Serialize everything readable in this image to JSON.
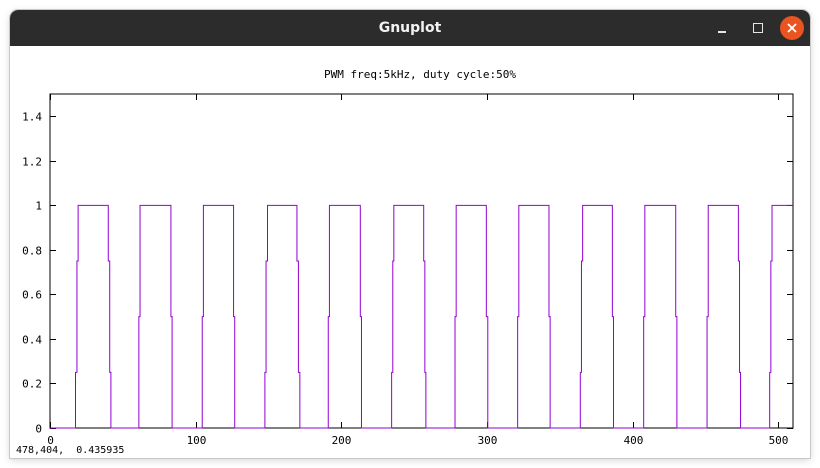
{
  "window": {
    "title": "Gnuplot",
    "buttons": {
      "minimize_icon": "minimize-icon",
      "maximize_icon": "maximize-icon",
      "close_icon": "close-icon",
      "close_color": "#e95420"
    }
  },
  "status": {
    "coords": "478,404,  0.435935"
  },
  "chart_data": {
    "type": "line",
    "title": "PWM freq:5kHz, duty cycle:50%",
    "xlabel": "",
    "ylabel": "",
    "xlim": [
      0,
      510
    ],
    "ylim": [
      0,
      1.5
    ],
    "xticks": [
      0,
      100,
      200,
      300,
      400,
      500
    ],
    "xtick_labels": [
      "0",
      "100",
      "200",
      "300",
      "400",
      "500"
    ],
    "yticks": [
      0,
      0.2,
      0.4,
      0.6,
      0.8,
      1,
      1.2,
      1.4
    ],
    "ytick_labels": [
      "0",
      "0.2",
      "0.4",
      "0.6",
      "0.8",
      "1",
      "1.2",
      "1.4"
    ],
    "grid": false,
    "legend": "none",
    "series": [
      {
        "color": "#9400d3",
        "pulses": [
          {
            "rise": [
              17.5,
              18.5,
              19.3
            ],
            "fall": [
              40.0,
              41.0,
              41.8
            ]
          },
          {
            "rise": [
              61.0,
              61.8
            ],
            "fall": [
              83.0,
              83.8
            ]
          },
          {
            "rise": [
              104.5,
              105.3
            ],
            "fall": [
              126.0,
              126.8
            ]
          },
          {
            "rise": [
              147.5,
              148.3,
              149.3
            ],
            "fall": [
              169.5,
              170.5,
              171.5
            ]
          },
          {
            "rise": [
              191.0,
              191.8
            ],
            "fall": [
              213.0,
              213.8
            ]
          },
          {
            "rise": [
              234.5,
              235.3,
              236.0
            ],
            "fall": [
              256.5,
              257.3,
              258.0
            ]
          },
          {
            "rise": [
              278.0,
              278.8
            ],
            "fall": [
              299.5,
              300.5
            ]
          },
          {
            "rise": [
              321.0,
              321.8
            ],
            "fall": [
              342.5,
              343.3
            ]
          },
          {
            "rise": [
              364.0,
              364.8,
              365.6
            ],
            "fall": [
              386.0,
              386.8
            ]
          },
          {
            "rise": [
              407.5,
              408.3
            ],
            "fall": [
              429.5,
              430.3
            ]
          },
          {
            "rise": [
              451.0,
              451.8
            ],
            "fall": [
              472.5,
              473.3,
              474.0
            ]
          },
          {
            "rise": [
              494.0,
              494.8,
              495.6
            ],
            "fall": []
          }
        ],
        "levels_rise3": [
          0.25,
          0.75,
          1
        ],
        "levels_rise2": [
          0.5,
          1
        ],
        "levels_fall3": [
          0.75,
          0.25,
          0
        ],
        "levels_fall2": [
          0.5,
          0
        ]
      }
    ]
  }
}
